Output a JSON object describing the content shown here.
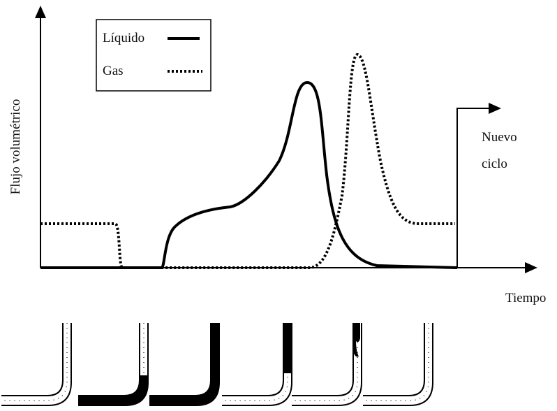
{
  "legend": {
    "liquid": "Líquido",
    "gas": "Gas"
  },
  "axes": {
    "y_label": "Flujo volumétrico",
    "x_label": "Tiempo"
  },
  "annotation": {
    "lines": [
      "Nuevo",
      "ciclo"
    ]
  }
}
